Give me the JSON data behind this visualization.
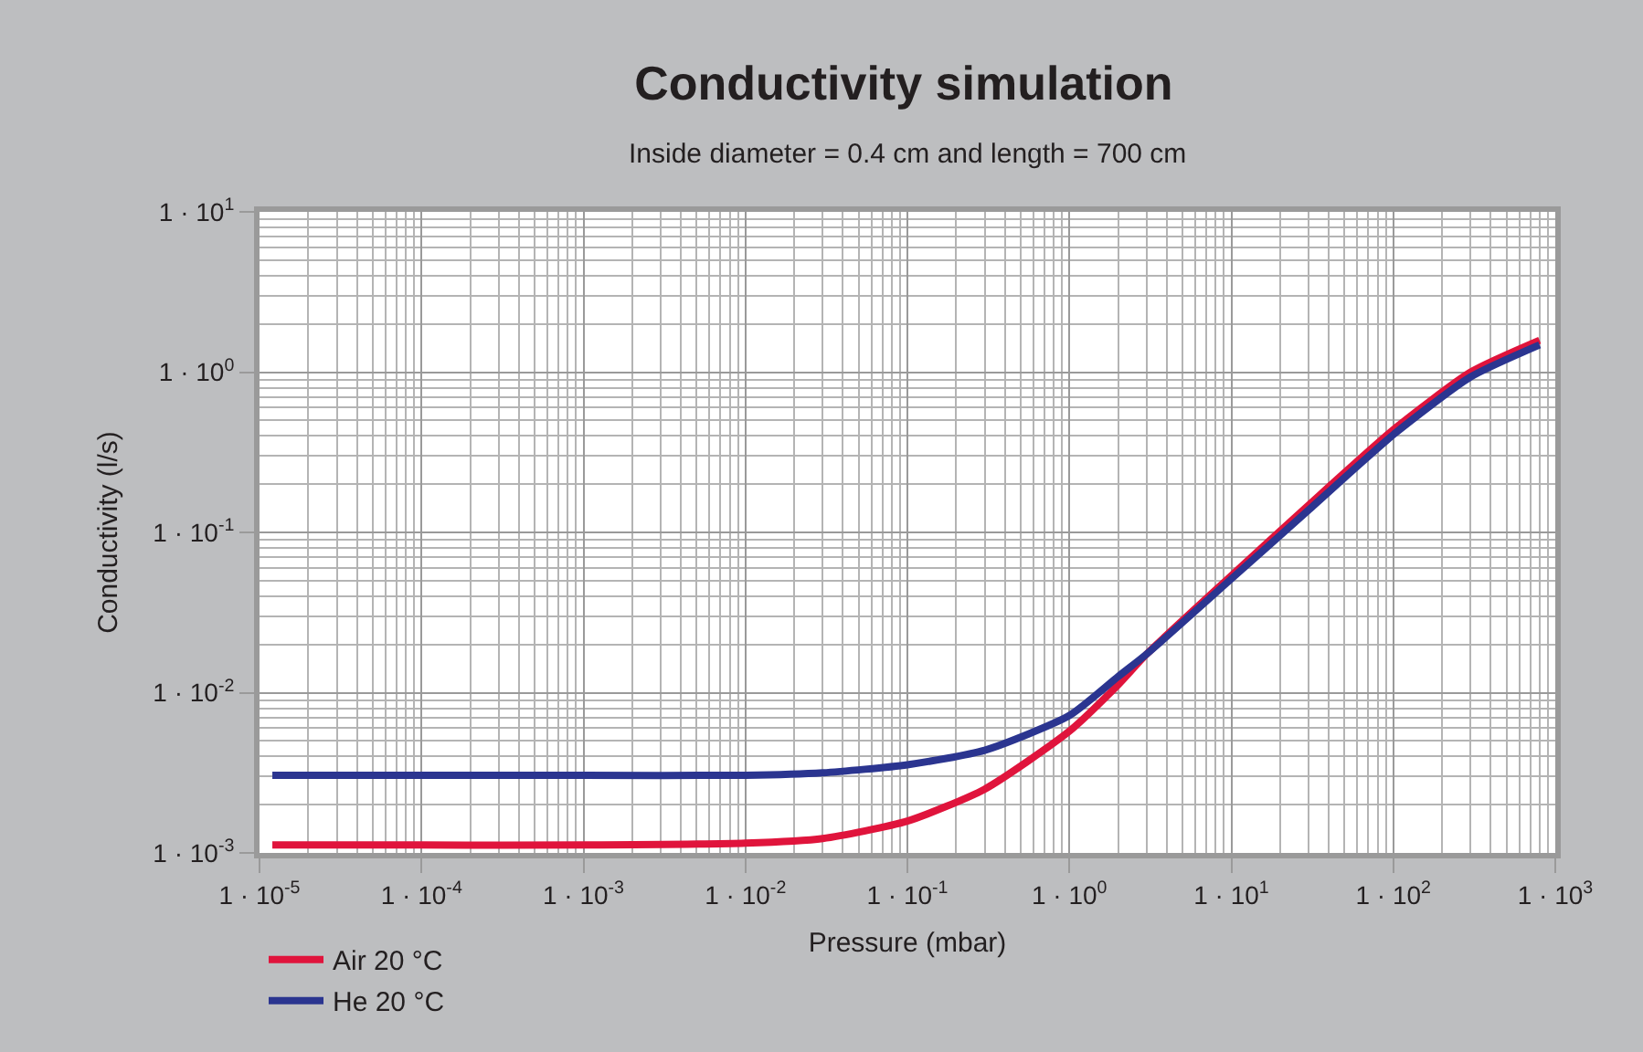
{
  "chart_data": {
    "type": "line",
    "title": "Conductivity simulation",
    "subtitle": "Inside diameter = 0.4 cm and length = 700 cm",
    "xlabel": "Pressure (mbar)",
    "ylabel": "Conductivity (l/s)",
    "log": "xy",
    "grid": true,
    "legend": "bottom left",
    "line_style": "solid",
    "marker": "none",
    "xlim": [
      1e-05,
      1000
    ],
    "ylim": [
      0.001,
      10
    ],
    "xticks": [
      {
        "value": 1e-05,
        "label": "1 · 10$^{-5}$"
      },
      {
        "value": 0.0001,
        "label": "1 · 10$^{-4}$"
      },
      {
        "value": 0.001,
        "label": "1 · 10$^{-3}$"
      },
      {
        "value": 0.01,
        "label": "1 · 10$^{-2}$"
      },
      {
        "value": 0.1,
        "label": "1 · 10$^{-1}$"
      },
      {
        "value": 1,
        "label": "1 · 10$^{0}$"
      },
      {
        "value": 10,
        "label": "1 · 10$^{1}$"
      },
      {
        "value": 100,
        "label": "1 · 10$^{2}$"
      },
      {
        "value": 1000,
        "label": "1 · 10$^{3}$"
      }
    ],
    "yticks": [
      {
        "value": 0.001,
        "label": "1 · 10$^{-3}$"
      },
      {
        "value": 0.01,
        "label": "1 · 10$^{-2}$"
      },
      {
        "value": 0.1,
        "label": "1 · 10$^{-1}$"
      },
      {
        "value": 1,
        "label": "1 · 10$^{0}$"
      },
      {
        "value": 10,
        "label": "1 · 10$^{1}$"
      }
    ],
    "x": [
      1.2e-05,
      0.0001,
      0.001,
      0.01,
      0.03,
      0.1,
      0.3,
      1,
      2,
      3,
      10,
      30,
      100,
      300,
      800
    ],
    "series": [
      {
        "name": "Air 20 °C",
        "color": "#e0143c",
        "values": [
          0.00112,
          0.00112,
          0.00112,
          0.00115,
          0.00123,
          0.00158,
          0.0025,
          0.00575,
          0.0112,
          0.0174,
          0.0537,
          0.148,
          0.437,
          1.0,
          1.58
        ]
      },
      {
        "name": "He 20 °C",
        "color": "#2b3590",
        "values": [
          0.00305,
          0.00305,
          0.00305,
          0.00305,
          0.00316,
          0.00355,
          0.00437,
          0.0072,
          0.0126,
          0.0174,
          0.0513,
          0.138,
          0.407,
          0.933,
          1.48
        ]
      }
    ]
  }
}
